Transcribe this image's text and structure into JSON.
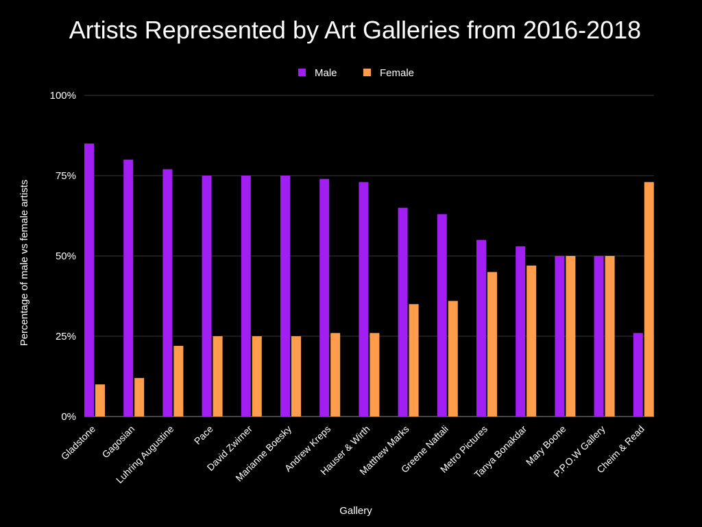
{
  "chart_data": {
    "type": "bar",
    "title": "Artists Represented by Art Galleries from 2016-2018",
    "xlabel": "Gallery",
    "ylabel": "Percentage of male vs female artists",
    "ylim": [
      0,
      100
    ],
    "yticks": [
      0,
      25,
      50,
      75,
      100
    ],
    "ytick_labels": [
      "0%",
      "25%",
      "50%",
      "75%",
      "100%"
    ],
    "grid": true,
    "legend_position": "top-center",
    "categories": [
      "Gladstone",
      "Gagosian",
      "Luhring Augustine",
      "Pace",
      "David Zwirner",
      "Marianne Boesky",
      "Andrew Kreps",
      "Hauser & Wirth",
      "Matthew Marks",
      "Greene Naftali",
      "Metro Pictures",
      "Tanya Bonakdar",
      "Mary Boone",
      "P.P.O.W Gallery",
      "Cheim & Read"
    ],
    "series": [
      {
        "name": "Male",
        "color": "#a11ff2",
        "values": [
          85,
          80,
          77,
          75,
          75,
          75,
          74,
          73,
          65,
          63,
          55,
          53,
          50,
          50,
          26
        ]
      },
      {
        "name": "Female",
        "color": "#ff9d4c",
        "values": [
          10,
          12,
          22,
          25,
          25,
          25,
          26,
          26,
          35,
          36,
          45,
          47,
          50,
          50,
          73
        ]
      }
    ]
  }
}
